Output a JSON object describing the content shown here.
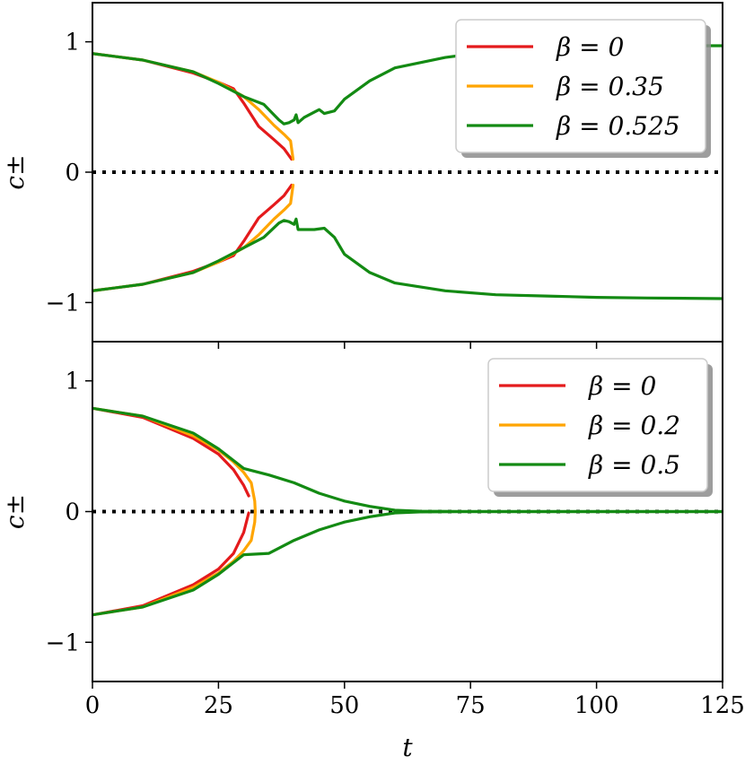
{
  "figure": {
    "xlabel": "t"
  },
  "chart_data": [
    {
      "type": "line",
      "ylabel": "c±",
      "xlim": [
        0,
        125
      ],
      "ylim": [
        -1.3,
        1.3
      ],
      "xticks": [
        0,
        25,
        50,
        75,
        100,
        125
      ],
      "yticks": [
        {
          "v": 1,
          "label": "1"
        },
        {
          "v": 0,
          "label": "0"
        },
        {
          "v": -1,
          "label": "−1"
        }
      ],
      "zero_line": {
        "style": "dotted",
        "y": 0
      },
      "legend": {
        "position": "top-right"
      },
      "series": [
        {
          "name": "β = 0",
          "color": "#e41a1c",
          "upper": [
            [
              0,
              0.91
            ],
            [
              10,
              0.86
            ],
            [
              20,
              0.76
            ],
            [
              25,
              0.69
            ],
            [
              28,
              0.64
            ],
            [
              30,
              0.53
            ],
            [
              33,
              0.35
            ],
            [
              36,
              0.25
            ],
            [
              38,
              0.18
            ],
            [
              39.5,
              0.1
            ]
          ],
          "lower": [
            [
              0,
              -0.91
            ],
            [
              10,
              -0.86
            ],
            [
              20,
              -0.76
            ],
            [
              25,
              -0.69
            ],
            [
              28,
              -0.64
            ],
            [
              30,
              -0.53
            ],
            [
              33,
              -0.35
            ],
            [
              36,
              -0.25
            ],
            [
              38,
              -0.18
            ],
            [
              39.5,
              -0.1
            ]
          ]
        },
        {
          "name": "β = 0.35",
          "color": "#ffa500",
          "upper": [
            [
              0,
              0.91
            ],
            [
              10,
              0.86
            ],
            [
              20,
              0.77
            ],
            [
              25,
              0.69
            ],
            [
              30,
              0.58
            ],
            [
              33,
              0.48
            ],
            [
              36,
              0.36
            ],
            [
              38,
              0.29
            ],
            [
              39.3,
              0.24
            ],
            [
              39.8,
              0.1
            ]
          ],
          "lower": [
            [
              0,
              -0.91
            ],
            [
              10,
              -0.86
            ],
            [
              20,
              -0.77
            ],
            [
              25,
              -0.69
            ],
            [
              30,
              -0.58
            ],
            [
              33,
              -0.48
            ],
            [
              36,
              -0.36
            ],
            [
              38,
              -0.29
            ],
            [
              39.3,
              -0.24
            ],
            [
              39.8,
              -0.1
            ]
          ]
        },
        {
          "name": "β = 0.525",
          "color": "#138a13",
          "upper": [
            [
              0,
              0.91
            ],
            [
              10,
              0.86
            ],
            [
              20,
              0.77
            ],
            [
              25,
              0.68
            ],
            [
              30,
              0.58
            ],
            [
              34,
              0.52
            ],
            [
              37,
              0.4
            ],
            [
              38,
              0.37
            ],
            [
              39,
              0.38
            ],
            [
              40,
              0.4
            ],
            [
              40.4,
              0.44
            ],
            [
              40.8,
              0.38
            ],
            [
              42,
              0.42
            ],
            [
              44,
              0.46
            ],
            [
              45,
              0.48
            ],
            [
              46,
              0.45
            ],
            [
              48,
              0.47
            ],
            [
              50,
              0.56
            ],
            [
              55,
              0.7
            ],
            [
              60,
              0.8
            ],
            [
              70,
              0.88
            ],
            [
              80,
              0.93
            ],
            [
              90,
              0.95
            ],
            [
              100,
              0.96
            ],
            [
              110,
              0.97
            ],
            [
              125,
              0.97
            ]
          ],
          "lower": [
            [
              0,
              -0.91
            ],
            [
              10,
              -0.86
            ],
            [
              20,
              -0.77
            ],
            [
              25,
              -0.68
            ],
            [
              30,
              -0.58
            ],
            [
              34,
              -0.5
            ],
            [
              37,
              -0.39
            ],
            [
              38,
              -0.37
            ],
            [
              39,
              -0.38
            ],
            [
              40,
              -0.4
            ],
            [
              40.4,
              -0.36
            ],
            [
              40.8,
              -0.44
            ],
            [
              42,
              -0.44
            ],
            [
              44,
              -0.44
            ],
            [
              46,
              -0.43
            ],
            [
              48,
              -0.5
            ],
            [
              50,
              -0.63
            ],
            [
              55,
              -0.77
            ],
            [
              60,
              -0.85
            ],
            [
              70,
              -0.91
            ],
            [
              80,
              -0.94
            ],
            [
              90,
              -0.95
            ],
            [
              100,
              -0.96
            ],
            [
              110,
              -0.965
            ],
            [
              125,
              -0.97
            ]
          ]
        }
      ]
    },
    {
      "type": "line",
      "ylabel": "c±",
      "xlim": [
        0,
        125
      ],
      "ylim": [
        -1.3,
        1.3
      ],
      "xticks": [
        0,
        25,
        50,
        75,
        100,
        125
      ],
      "yticks": [
        {
          "v": 1,
          "label": "1"
        },
        {
          "v": 0,
          "label": "0"
        },
        {
          "v": -1,
          "label": "−1"
        }
      ],
      "zero_line": {
        "style": "dotted",
        "y": 0
      },
      "legend": {
        "position": "top-right"
      },
      "series": [
        {
          "name": "β = 0",
          "color": "#e41a1c",
          "upper": [
            [
              0,
              0.79
            ],
            [
              10,
              0.72
            ],
            [
              20,
              0.56
            ],
            [
              25,
              0.44
            ],
            [
              28,
              0.32
            ],
            [
              30,
              0.2
            ],
            [
              31,
              0.12
            ]
          ],
          "lower": [
            [
              0,
              -0.79
            ],
            [
              10,
              -0.72
            ],
            [
              20,
              -0.56
            ],
            [
              25,
              -0.44
            ],
            [
              28,
              -0.32
            ],
            [
              30,
              -0.16
            ],
            [
              31,
              -0.01
            ]
          ]
        },
        {
          "name": "β = 0.2",
          "color": "#ffa500",
          "upper": [
            [
              0,
              0.79
            ],
            [
              10,
              0.73
            ],
            [
              20,
              0.58
            ],
            [
              25,
              0.47
            ],
            [
              28,
              0.38
            ],
            [
              30,
              0.3
            ],
            [
              31.5,
              0.22
            ],
            [
              32.2,
              0.08
            ],
            [
              32.3,
              0.0
            ]
          ],
          "lower": [
            [
              0,
              -0.79
            ],
            [
              10,
              -0.73
            ],
            [
              20,
              -0.58
            ],
            [
              25,
              -0.47
            ],
            [
              28,
              -0.38
            ],
            [
              30,
              -0.3
            ],
            [
              31.5,
              -0.22
            ],
            [
              32.2,
              -0.08
            ],
            [
              32.3,
              0.0
            ]
          ]
        },
        {
          "name": "β = 0.5",
          "color": "#138a13",
          "upper": [
            [
              0,
              0.79
            ],
            [
              10,
              0.73
            ],
            [
              20,
              0.6
            ],
            [
              25,
              0.48
            ],
            [
              30,
              0.33
            ],
            [
              35,
              0.28
            ],
            [
              40,
              0.22
            ],
            [
              45,
              0.14
            ],
            [
              50,
              0.08
            ],
            [
              55,
              0.04
            ],
            [
              60,
              0.01
            ],
            [
              65,
              0.003
            ],
            [
              75,
              0.0
            ],
            [
              125,
              0.0
            ]
          ],
          "lower": [
            [
              0,
              -0.79
            ],
            [
              10,
              -0.73
            ],
            [
              20,
              -0.6
            ],
            [
              25,
              -0.48
            ],
            [
              30,
              -0.33
            ],
            [
              35,
              -0.32
            ],
            [
              40,
              -0.22
            ],
            [
              45,
              -0.14
            ],
            [
              50,
              -0.08
            ],
            [
              55,
              -0.04
            ],
            [
              60,
              -0.01
            ],
            [
              65,
              -0.003
            ],
            [
              75,
              0.0
            ],
            [
              125,
              0.0
            ]
          ]
        }
      ]
    }
  ]
}
